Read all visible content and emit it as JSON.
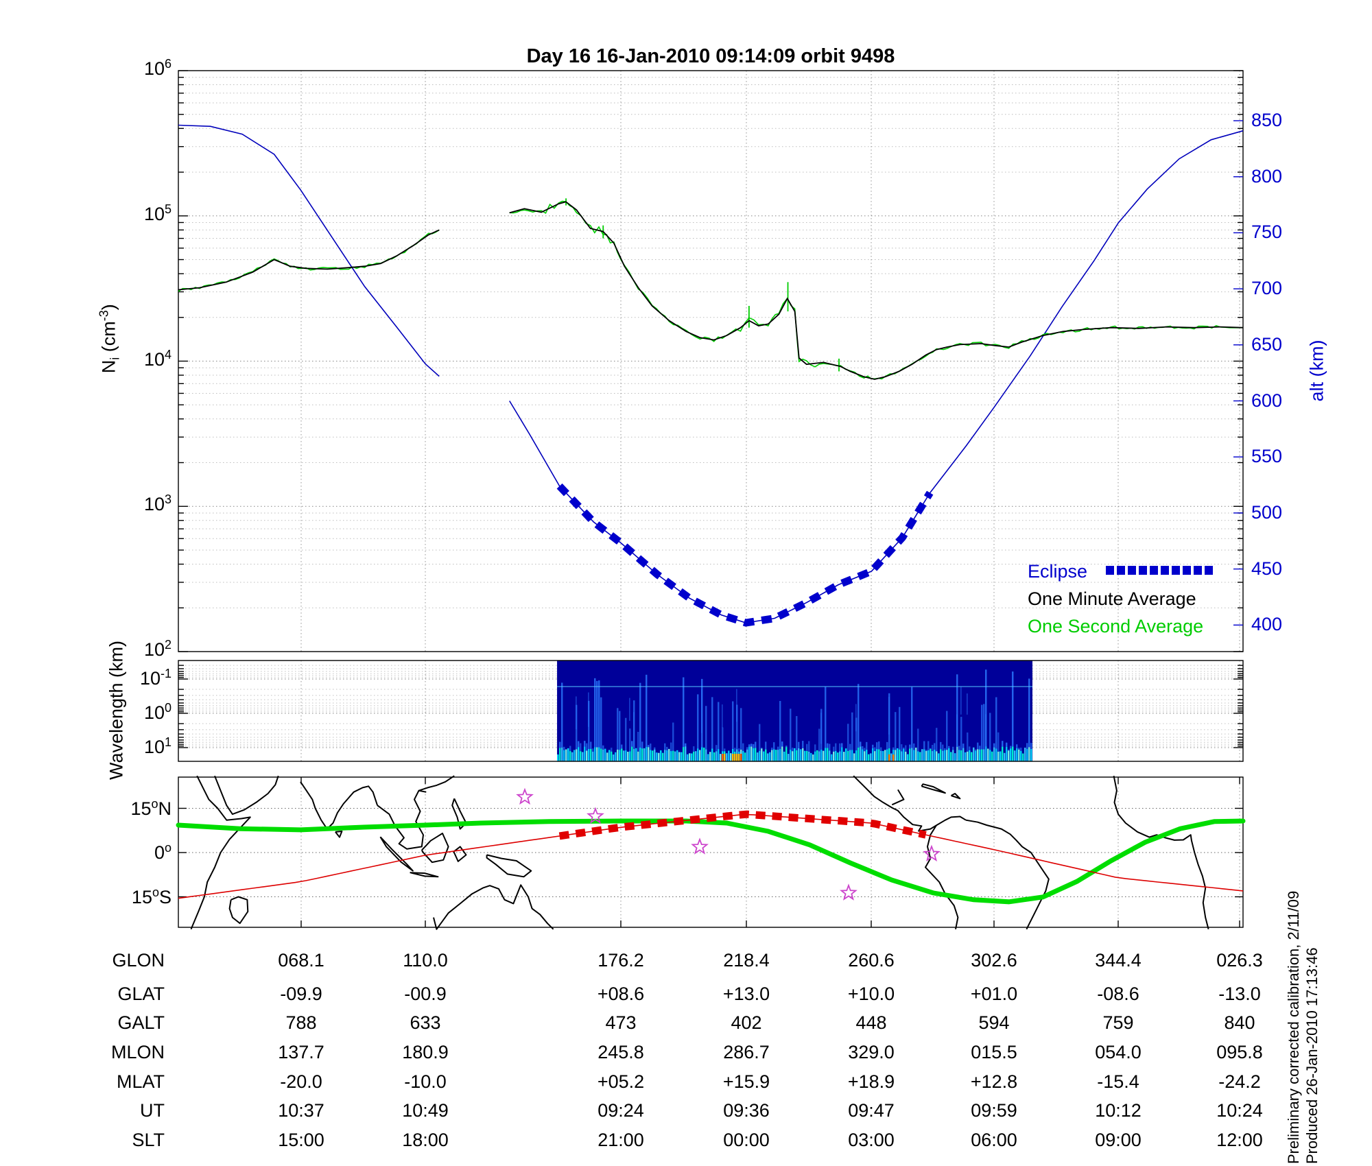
{
  "title": "Day 16  16-Jan-2010 09:14:09   orbit 9498",
  "colors": {
    "curve_blue": "#0000BB",
    "curve_green": "#00CC00",
    "curve_black": "#000000",
    "map_green": "#00DD00",
    "map_red": "#DD0000",
    "star_magenta": "#CC44CC",
    "spectrogram_bg": "#000099",
    "axis_label_blue": "#0000CC"
  },
  "density_panel": {
    "ylabel": {
      "base": "N",
      "sub": "i",
      "mid": " (cm",
      "sup": "-3",
      "end": ")"
    },
    "ytick_labels": [
      {
        "b": "10",
        "e": "6"
      },
      {
        "b": "10",
        "e": "5"
      },
      {
        "b": "10",
        "e": "4"
      },
      {
        "b": "10",
        "e": "3"
      },
      {
        "b": "10",
        "e": "2"
      }
    ],
    "right_axis": {
      "label": "alt (km)",
      "ticks": [
        "850",
        "800",
        "750",
        "700",
        "650",
        "600",
        "550",
        "500",
        "450",
        "400"
      ]
    },
    "legend": [
      {
        "label": "Eclipse",
        "color": "#0000CC",
        "style": "dashed-squares"
      },
      {
        "label": "One Minute Average",
        "color": "#000000",
        "style": "solid"
      },
      {
        "label": "One Second Average",
        "color": "#00CC00",
        "style": "solid"
      }
    ]
  },
  "wavelength_panel": {
    "ylabel": "Wavelength (km)",
    "ytick_labels": [
      {
        "b": "10",
        "e": "-1"
      },
      {
        "b": "10",
        "e": "0"
      },
      {
        "b": "10",
        "e": "1"
      }
    ]
  },
  "map_panel": {
    "lat_ticks": [
      {
        "num": "15",
        "sup": "o",
        "suf": "N"
      },
      {
        "num": "0",
        "sup": "o",
        "suf": ""
      },
      {
        "num": "15",
        "sup": "o",
        "suf": "S"
      }
    ]
  },
  "table": {
    "rows": [
      {
        "label": "GLON",
        "values": [
          "068.1",
          "110.0",
          "176.2",
          "218.4",
          "260.6",
          "302.6",
          "344.4",
          "026.3"
        ]
      },
      {
        "label": "GLAT",
        "values": [
          "-09.9",
          "-00.9",
          "+08.6",
          "+13.0",
          "+10.0",
          "+01.0",
          "-08.6",
          "-13.0"
        ]
      },
      {
        "label": "GALT",
        "values": [
          "788",
          "633",
          "473",
          "402",
          "448",
          "594",
          "759",
          "840"
        ]
      },
      {
        "label": "MLON",
        "values": [
          "137.7",
          "180.9",
          "245.8",
          "286.7",
          "329.0",
          "015.5",
          "054.0",
          "095.8"
        ]
      },
      {
        "label": "MLAT",
        "values": [
          "-20.0",
          "-10.0",
          "+05.2",
          "+15.9",
          "+18.9",
          "+12.8",
          "-15.4",
          "-24.2"
        ]
      },
      {
        "label": "UT",
        "values": [
          "10:37",
          "10:49",
          "09:24",
          "09:36",
          "09:47",
          "09:59",
          "10:12",
          "10:24"
        ]
      },
      {
        "label": "SLT",
        "values": [
          "15:00",
          "18:00",
          "21:00",
          "00:00",
          "03:00",
          "06:00",
          "09:00",
          "12:00"
        ]
      }
    ]
  },
  "footer": {
    "line1": "Preliminary corrected calibration, 2/11/09",
    "line2": "Produced 26-Jan-2010 17:13:46"
  },
  "chart_data": [
    {
      "type": "line",
      "title": "Ion density and spacecraft altitude vs longitude (one orbit)",
      "xlabel": "geographic longitude (columns of bottom table)",
      "ylabel_left": "Ni (cm^-3), log scale 1e2..1e6",
      "ylabel_right": "alt (km), 400..850",
      "x_axis_note": "x01 = fraction across panel; longitude 26.7E to 386.7E",
      "grid": true,
      "legend_position": "bottom-right-inside",
      "series": [
        {
          "name": "One Minute Average (Ni, segment 1)",
          "axis": "left",
          "points": [
            [
              0,
              31000
            ],
            [
              0.02,
              32000
            ],
            [
              0.045,
              35000
            ],
            [
              0.07,
              41000
            ],
            [
              0.09,
              50000
            ],
            [
              0.105,
              45000
            ],
            [
              0.12,
              43500
            ],
            [
              0.14,
              43000
            ],
            [
              0.16,
              44000
            ],
            [
              0.175,
              45000
            ],
            [
              0.19,
              47000
            ],
            [
              0.205,
              53000
            ],
            [
              0.22,
              62000
            ],
            [
              0.235,
              74000
            ],
            [
              0.245,
              80000
            ]
          ]
        },
        {
          "name": "One Minute Average (Ni, segment 2)",
          "axis": "left",
          "points": [
            [
              0.311,
              105000
            ],
            [
              0.325,
              112000
            ],
            [
              0.341,
              106000
            ],
            [
              0.357,
              121000
            ],
            [
              0.364,
              125000
            ],
            [
              0.374,
              110000
            ],
            [
              0.387,
              82000
            ],
            [
              0.399,
              78000
            ],
            [
              0.409,
              65000
            ],
            [
              0.419,
              45000
            ],
            [
              0.432,
              32000
            ],
            [
              0.445,
              24000
            ],
            [
              0.461,
              19000
            ],
            [
              0.477,
              16000
            ],
            [
              0.49,
              14500
            ],
            [
              0.503,
              14000
            ],
            [
              0.515,
              15000
            ],
            [
              0.528,
              17000
            ],
            [
              0.536,
              19000
            ],
            [
              0.545,
              17500
            ],
            [
              0.554,
              18000
            ],
            [
              0.564,
              21000
            ],
            [
              0.572,
              27000
            ],
            [
              0.579,
              22000
            ],
            [
              0.583,
              10500
            ],
            [
              0.59,
              9500
            ],
            [
              0.606,
              9800
            ],
            [
              0.622,
              9200
            ],
            [
              0.631,
              8500
            ],
            [
              0.644,
              7800
            ],
            [
              0.654,
              7500
            ],
            [
              0.664,
              7800
            ],
            [
              0.677,
              8500
            ],
            [
              0.689,
              9500
            ],
            [
              0.702,
              11000
            ],
            [
              0.712,
              12000
            ],
            [
              0.722,
              12500
            ],
            [
              0.734,
              13000
            ],
            [
              0.754,
              13200
            ],
            [
              0.767,
              12800
            ],
            [
              0.78,
              12500
            ],
            [
              0.792,
              13500
            ],
            [
              0.812,
              15000
            ],
            [
              0.831,
              16000
            ],
            [
              0.85,
              16500
            ],
            [
              0.876,
              17000
            ],
            [
              0.902,
              16800
            ],
            [
              0.928,
              17200
            ],
            [
              0.954,
              17000
            ],
            [
              0.979,
              17200
            ],
            [
              1,
              17000
            ]
          ]
        },
        {
          "name": "One Second Average (Ni)",
          "axis": "left",
          "note": "same trend as one-minute average with noise; extra spikes listed",
          "spikes": [
            [
              0.536,
              17000,
              24000
            ],
            [
              0.5725,
              22000,
              35000
            ],
            [
              0.6205,
              8500,
              10400
            ],
            [
              0.3641,
              118000,
              132000
            ],
            [
              0.399,
              70000,
              86000
            ]
          ]
        },
        {
          "name": "alt (segment 1)",
          "axis": "right",
          "points": [
            [
              0,
              846
            ],
            [
              0.03,
              845
            ],
            [
              0.06,
              838
            ],
            [
              0.09,
              820
            ],
            [
              0.115,
              788
            ],
            [
              0.145,
              745
            ],
            [
              0.175,
              702
            ],
            [
              0.205,
              666
            ],
            [
              0.232,
              633
            ],
            [
              0.245,
              622
            ]
          ]
        },
        {
          "name": "alt (segment 2)",
          "axis": "right",
          "points": [
            [
              0.311,
              600
            ],
            [
              0.33,
              570
            ],
            [
              0.358,
              524
            ],
            [
              0.39,
              492
            ],
            [
              0.416,
              473
            ],
            [
              0.45,
              445
            ],
            [
              0.48,
              424
            ],
            [
              0.51,
              409
            ],
            [
              0.533,
              402
            ],
            [
              0.56,
              406
            ],
            [
              0.59,
              420
            ],
            [
              0.62,
              436
            ],
            [
              0.651,
              448
            ],
            [
              0.68,
              478
            ],
            [
              0.706,
              518
            ],
            [
              0.74,
              560
            ],
            [
              0.766,
              594
            ],
            [
              0.8,
              640
            ],
            [
              0.83,
              684
            ],
            [
              0.86,
              725
            ],
            [
              0.883,
              759
            ],
            [
              0.91,
              789
            ],
            [
              0.94,
              816
            ],
            [
              0.97,
              833
            ],
            [
              1,
              841
            ]
          ]
        }
      ],
      "eclipse_x01": [
        0.358,
        0.706
      ],
      "data_gap_x01": [
        0.245,
        0.311
      ]
    },
    {
      "type": "heatmap",
      "title": "Wavelength spectrogram",
      "ylabel": "Wavelength (km), inverted log axis 0.03 to 25",
      "x_extent_x01": [
        0.3557,
        0.8022
      ],
      "description": "dark navy background with dense cyan vertical bursts at long wavelengths, scattered tall streaks, yellow-orange hot spots near x01 0.52 and 0.67, faint cyan horizontal band near 0.2 km"
    },
    {
      "type": "line",
      "title": "Ground track map, latitude range +-26 deg, longitude 26.7E..386.7E",
      "series": [
        {
          "name": "magnetic equator (green)",
          "points_x01_lat": [
            [
              0,
              9.3
            ],
            [
              0.058,
              8.1
            ],
            [
              0.115,
              7.7
            ],
            [
              0.174,
              8.6
            ],
            [
              0.232,
              9.3
            ],
            [
              0.284,
              10.0
            ],
            [
              0.348,
              10.5
            ],
            [
              0.416,
              10.7
            ],
            [
              0.477,
              10.7
            ],
            [
              0.515,
              10.0
            ],
            [
              0.554,
              7.2
            ],
            [
              0.593,
              2.6
            ],
            [
              0.631,
              -3.5
            ],
            [
              0.67,
              -9.3
            ],
            [
              0.709,
              -13.7
            ],
            [
              0.747,
              -16.0
            ],
            [
              0.78,
              -16.7
            ],
            [
              0.812,
              -15.1
            ],
            [
              0.844,
              -9.8
            ],
            [
              0.876,
              -2.8
            ],
            [
              0.908,
              3.5
            ],
            [
              0.941,
              8.1
            ],
            [
              0.973,
              10.5
            ],
            [
              1,
              10.7
            ]
          ]
        },
        {
          "name": "satellite track (red, thick dashed while in eclipse)",
          "points_x01_lat": [
            [
              0,
              -15.5
            ],
            [
              0.115,
              -9.9
            ],
            [
              0.232,
              -0.9
            ],
            [
              0.416,
              8.6
            ],
            [
              0.533,
              13.0
            ],
            [
              0.651,
              10.0
            ],
            [
              0.766,
              1.0
            ],
            [
              0.883,
              -8.6
            ],
            [
              1,
              -13.0
            ]
          ],
          "eclipse_x01": [
            0.358,
            0.706
          ]
        }
      ],
      "stars_x01_lat": [
        [
          0.3254,
          18.8
        ],
        [
          0.3917,
          12.3
        ],
        [
          0.4897,
          1.9
        ],
        [
          0.6295,
          -13.7
        ],
        [
          0.7075,
          -0.5
        ]
      ]
    }
  ]
}
